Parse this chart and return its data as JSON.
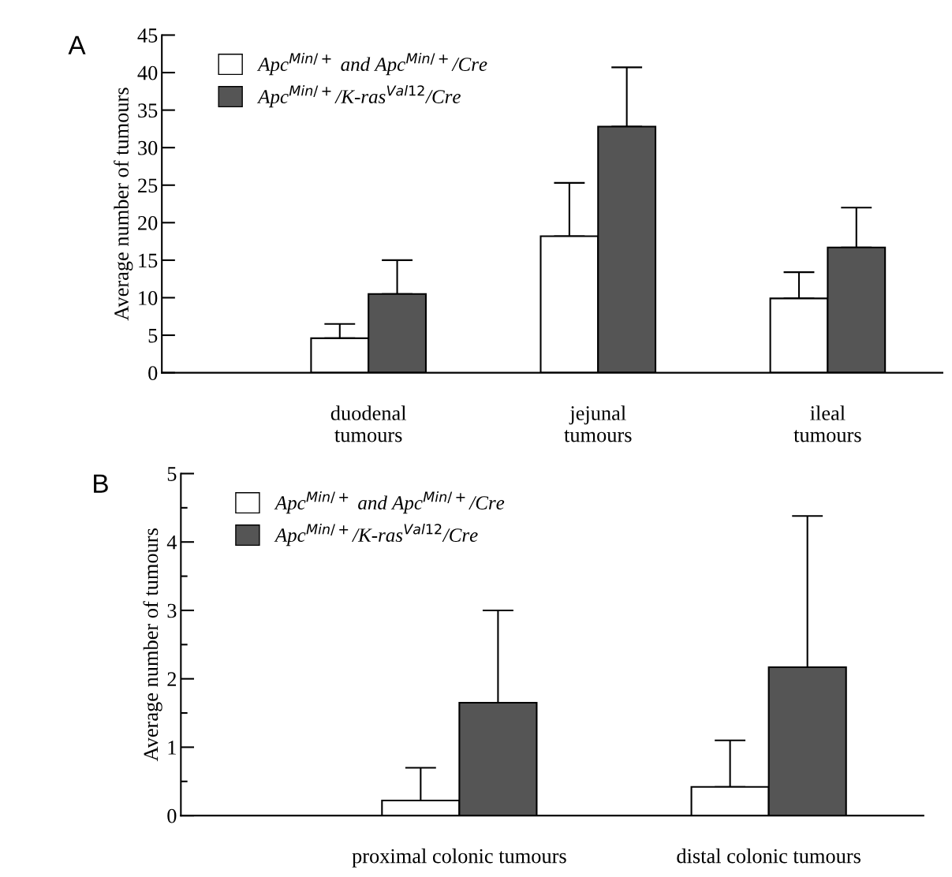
{
  "chart_data": [
    {
      "type": "bar",
      "title": "A",
      "ylabel": "Average number of tumours",
      "categories": [
        "duodenal\ntumours",
        "jejunal\ntumours",
        "ileal\ntumours"
      ],
      "series": [
        {
          "name": "Apc$^{Min/+}$ and Apc$^{Min/+}$/Cre",
          "color": "#ffffff",
          "values": [
            4.6,
            18.2,
            9.9
          ],
          "errors": [
            [
              4.6,
              6.5
            ],
            [
              18.2,
              25.3
            ],
            [
              9.9,
              13.4
            ]
          ]
        },
        {
          "name": "Apc$^{Min/+}$/K-ras$^{Val12}$/Cre",
          "color": "#555555",
          "values": [
            10.5,
            32.8,
            16.7
          ],
          "errors": [
            [
              10.5,
              15.0
            ],
            [
              32.8,
              40.7
            ],
            [
              16.7,
              22.0
            ]
          ]
        }
      ],
      "ylim": [
        0,
        45
      ],
      "yticks": [
        0,
        5,
        10,
        15,
        20,
        25,
        30,
        35,
        40,
        45
      ],
      "grid": false,
      "legend": "top left"
    },
    {
      "type": "bar",
      "title": "B",
      "ylabel": "Average number of tumours",
      "categories": [
        "proximal colonic tumours",
        "distal colonic tumours"
      ],
      "series": [
        {
          "name": "Apc$^{Min/+}$ and Apc$^{Min/+}$/Cre",
          "color": "#ffffff",
          "values": [
            0.22,
            0.42
          ],
          "errors": [
            [
              0.22,
              0.7
            ],
            [
              0.42,
              1.1
            ]
          ]
        },
        {
          "name": "Apc$^{Min/+}$/K-ras$^{Val12}$/Cre",
          "color": "#555555",
          "values": [
            1.65,
            2.17
          ],
          "errors": [
            [
              1.65,
              3.0
            ],
            [
              2.17,
              4.38
            ]
          ]
        }
      ],
      "ylim": [
        0,
        5
      ],
      "yticks": [
        0,
        {
          "value": 0.5,
          "label": null
        },
        1,
        {
          "value": 1.5,
          "label": null
        },
        2,
        {
          "value": 2.5,
          "label": null
        },
        3,
        {
          "value": 3.5,
          "label": null
        },
        4,
        {
          "value": 4.5,
          "label": null
        },
        5
      ],
      "grid": false,
      "legend": "top left"
    }
  ]
}
